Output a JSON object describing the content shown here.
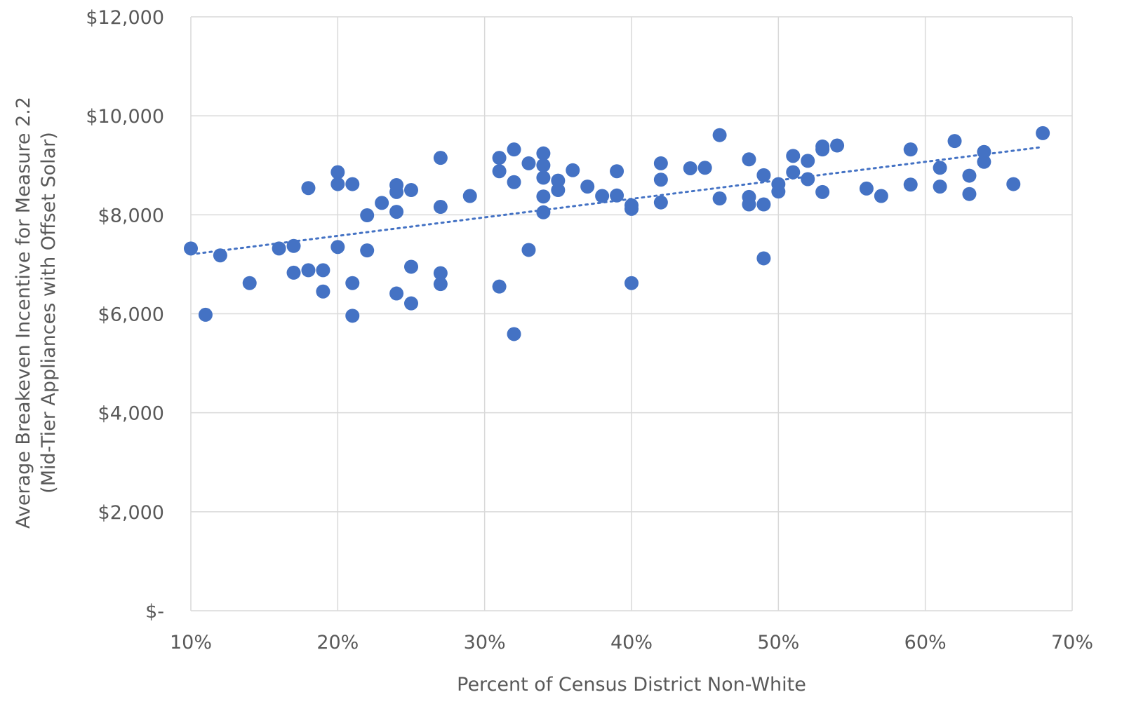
{
  "chart_data": {
    "type": "scatter",
    "title": "",
    "xlabel": "Percent of Census District Non-White",
    "ylabel": "Average Breakeven Incentive for Measure 2.2",
    "ylabel2": "(Mid-Tier Appliances with Offset Solar)",
    "xlim": [
      0.1,
      0.7
    ],
    "ylim": [
      0,
      12000
    ],
    "x_ticks": [
      0.1,
      0.2,
      0.3,
      0.4,
      0.5,
      0.6,
      0.7
    ],
    "x_tick_labels": [
      "10%",
      "20%",
      "30%",
      "40%",
      "50%",
      "60%",
      "70%"
    ],
    "y_ticks": [
      0,
      2000,
      4000,
      6000,
      8000,
      10000,
      12000
    ],
    "y_tick_labels": [
      "$-",
      "$2,000",
      "$4,000",
      "$6,000",
      "$8,000",
      "$10,000",
      "$12,000"
    ],
    "grid": true,
    "color": "#4472c4",
    "trendline": {
      "type": "linear",
      "style": "dotted",
      "x": [
        0.1,
        0.68
      ],
      "y": [
        7200,
        9370
      ]
    },
    "points": [
      [
        0.1,
        7320
      ],
      [
        0.11,
        5980
      ],
      [
        0.12,
        7180
      ],
      [
        0.14,
        6620
      ],
      [
        0.16,
        7320
      ],
      [
        0.17,
        7370
      ],
      [
        0.17,
        6830
      ],
      [
        0.18,
        8540
      ],
      [
        0.18,
        6880
      ],
      [
        0.19,
        6880
      ],
      [
        0.19,
        6450
      ],
      [
        0.2,
        8860
      ],
      [
        0.2,
        8620
      ],
      [
        0.2,
        7350
      ],
      [
        0.21,
        8620
      ],
      [
        0.21,
        6620
      ],
      [
        0.21,
        5960
      ],
      [
        0.22,
        7990
      ],
      [
        0.22,
        7280
      ],
      [
        0.23,
        8240
      ],
      [
        0.24,
        8600
      ],
      [
        0.24,
        8460
      ],
      [
        0.24,
        8060
      ],
      [
        0.24,
        6410
      ],
      [
        0.25,
        8500
      ],
      [
        0.25,
        6950
      ],
      [
        0.25,
        6210
      ],
      [
        0.27,
        9150
      ],
      [
        0.27,
        8160
      ],
      [
        0.27,
        6820
      ],
      [
        0.27,
        6600
      ],
      [
        0.29,
        8380
      ],
      [
        0.31,
        9150
      ],
      [
        0.31,
        8880
      ],
      [
        0.31,
        6550
      ],
      [
        0.32,
        9320
      ],
      [
        0.32,
        8660
      ],
      [
        0.32,
        5590
      ],
      [
        0.33,
        9040
      ],
      [
        0.33,
        7290
      ],
      [
        0.34,
        9240
      ],
      [
        0.34,
        9000
      ],
      [
        0.34,
        8750
      ],
      [
        0.34,
        8370
      ],
      [
        0.34,
        8050
      ],
      [
        0.35,
        8690
      ],
      [
        0.35,
        8500
      ],
      [
        0.36,
        8900
      ],
      [
        0.37,
        8570
      ],
      [
        0.38,
        8380
      ],
      [
        0.39,
        8880
      ],
      [
        0.39,
        8390
      ],
      [
        0.4,
        8190
      ],
      [
        0.4,
        8120
      ],
      [
        0.4,
        6620
      ],
      [
        0.42,
        9040
      ],
      [
        0.42,
        8710
      ],
      [
        0.42,
        8250
      ],
      [
        0.44,
        8940
      ],
      [
        0.45,
        8950
      ],
      [
        0.46,
        9610
      ],
      [
        0.46,
        8330
      ],
      [
        0.48,
        9120
      ],
      [
        0.48,
        8360
      ],
      [
        0.48,
        8210
      ],
      [
        0.49,
        8800
      ],
      [
        0.49,
        8210
      ],
      [
        0.49,
        7120
      ],
      [
        0.5,
        8620
      ],
      [
        0.5,
        8470
      ],
      [
        0.51,
        9190
      ],
      [
        0.51,
        8860
      ],
      [
        0.52,
        9090
      ],
      [
        0.52,
        8720
      ],
      [
        0.53,
        9380
      ],
      [
        0.53,
        9320
      ],
      [
        0.53,
        8460
      ],
      [
        0.54,
        9400
      ],
      [
        0.56,
        8530
      ],
      [
        0.57,
        8380
      ],
      [
        0.59,
        9320
      ],
      [
        0.59,
        8610
      ],
      [
        0.61,
        8950
      ],
      [
        0.61,
        8570
      ],
      [
        0.62,
        9490
      ],
      [
        0.63,
        8790
      ],
      [
        0.63,
        8420
      ],
      [
        0.64,
        9270
      ],
      [
        0.64,
        9070
      ],
      [
        0.66,
        8620
      ],
      [
        0.68,
        9650
      ]
    ]
  }
}
